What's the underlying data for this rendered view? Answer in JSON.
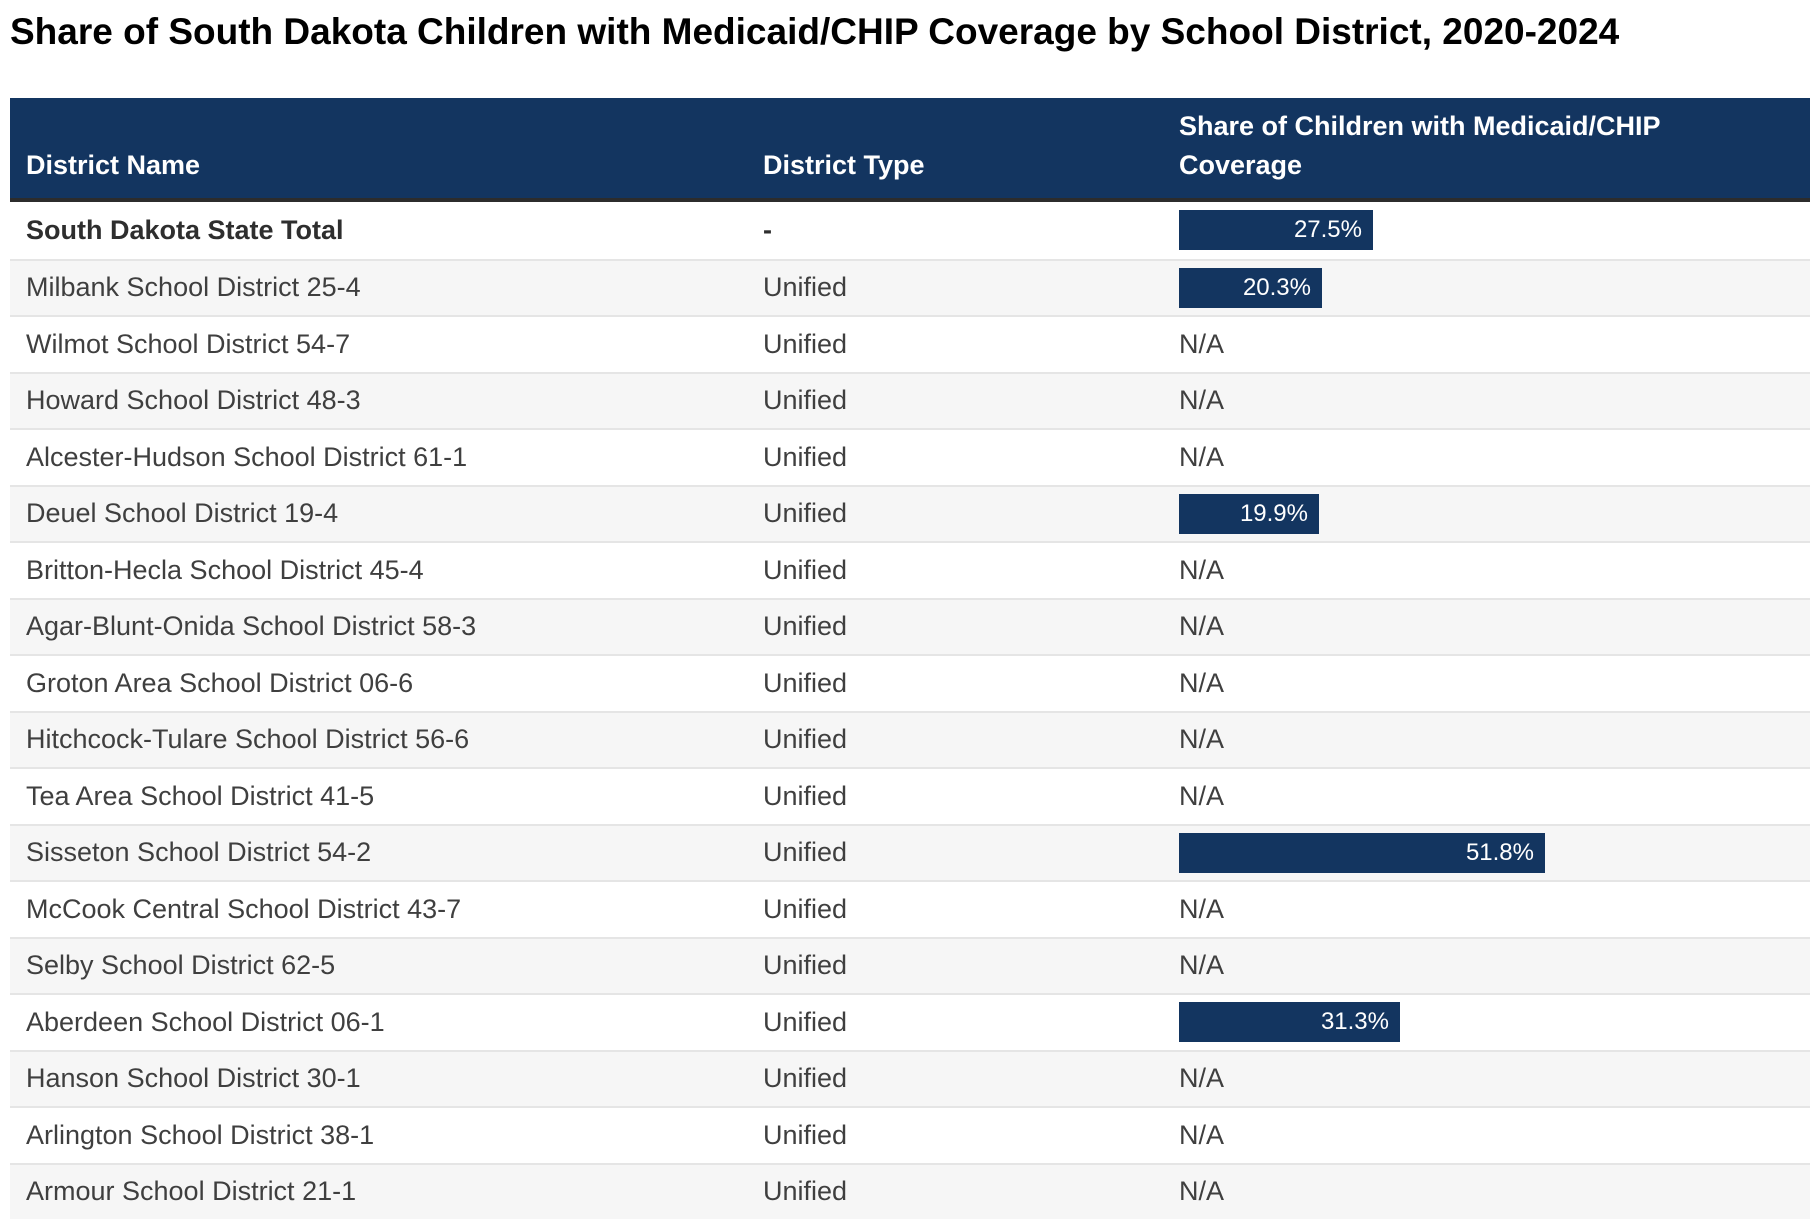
{
  "title": "Share of South Dakota Children with Medicaid/CHIP Coverage by School District, 2020-2024",
  "colors": {
    "header_bg": "#133560",
    "header_text": "#ffffff",
    "header_border": "#2c2c2c",
    "bar_fill": "#133560",
    "bar_label_text": "#ffffff",
    "row_alt_bg": "#f6f6f6",
    "row_text": "#3f3f3f",
    "separator": "#e5e5e5"
  },
  "table": {
    "columns": [
      {
        "label": "District Name"
      },
      {
        "label": "District Type"
      },
      {
        "label": "Share of Children with Medicaid/CHIP Coverage"
      }
    ],
    "na_label": "N/A",
    "rows": [
      {
        "name": "South Dakota State Total",
        "type": "-",
        "share_label": "27.5%",
        "share_value": 27.5,
        "emphasis": true
      },
      {
        "name": "Milbank School District 25-4",
        "type": "Unified",
        "share_label": "20.3%",
        "share_value": 20.3,
        "emphasis": false
      },
      {
        "name": "Wilmot School District 54-7",
        "type": "Unified",
        "share_label": "N/A",
        "share_value": null,
        "emphasis": false
      },
      {
        "name": "Howard School District 48-3",
        "type": "Unified",
        "share_label": "N/A",
        "share_value": null,
        "emphasis": false
      },
      {
        "name": "Alcester-Hudson School District 61-1",
        "type": "Unified",
        "share_label": "N/A",
        "share_value": null,
        "emphasis": false
      },
      {
        "name": "Deuel School District 19-4",
        "type": "Unified",
        "share_label": "19.9%",
        "share_value": 19.9,
        "emphasis": false
      },
      {
        "name": "Britton-Hecla School District 45-4",
        "type": "Unified",
        "share_label": "N/A",
        "share_value": null,
        "emphasis": false
      },
      {
        "name": "Agar-Blunt-Onida School District 58-3",
        "type": "Unified",
        "share_label": "N/A",
        "share_value": null,
        "emphasis": false
      },
      {
        "name": "Groton Area School District 06-6",
        "type": "Unified",
        "share_label": "N/A",
        "share_value": null,
        "emphasis": false
      },
      {
        "name": "Hitchcock-Tulare School District 56-6",
        "type": "Unified",
        "share_label": "N/A",
        "share_value": null,
        "emphasis": false
      },
      {
        "name": "Tea Area School District 41-5",
        "type": "Unified",
        "share_label": "N/A",
        "share_value": null,
        "emphasis": false
      },
      {
        "name": "Sisseton School District 54-2",
        "type": "Unified",
        "share_label": "51.8%",
        "share_value": 51.8,
        "emphasis": false
      },
      {
        "name": "McCook Central School District 43-7",
        "type": "Unified",
        "share_label": "N/A",
        "share_value": null,
        "emphasis": false
      },
      {
        "name": "Selby School District 62-5",
        "type": "Unified",
        "share_label": "N/A",
        "share_value": null,
        "emphasis": false
      },
      {
        "name": "Aberdeen School District 06-1",
        "type": "Unified",
        "share_label": "31.3%",
        "share_value": 31.3,
        "emphasis": false
      },
      {
        "name": "Hanson School District 30-1",
        "type": "Unified",
        "share_label": "N/A",
        "share_value": null,
        "emphasis": false
      },
      {
        "name": "Arlington School District 38-1",
        "type": "Unified",
        "share_label": "N/A",
        "share_value": null,
        "emphasis": false
      },
      {
        "name": "Armour School District 21-1",
        "type": "Unified",
        "share_label": "N/A",
        "share_value": null,
        "emphasis": false
      }
    ]
  },
  "chart_data": {
    "type": "table",
    "title": "Share of South Dakota Children with Medicaid/CHIP Coverage by School District, 2020-2024",
    "columns": [
      "District Name",
      "District Type",
      "Share of Children with Medicaid/CHIP Coverage"
    ],
    "value_unit": "percent",
    "na_label": "N/A",
    "rows": [
      [
        "South Dakota State Total",
        "-",
        27.5
      ],
      [
        "Milbank School District 25-4",
        "Unified",
        20.3
      ],
      [
        "Wilmot School District 54-7",
        "Unified",
        null
      ],
      [
        "Howard School District 48-3",
        "Unified",
        null
      ],
      [
        "Alcester-Hudson School District 61-1",
        "Unified",
        null
      ],
      [
        "Deuel School District 19-4",
        "Unified",
        19.9
      ],
      [
        "Britton-Hecla School District 45-4",
        "Unified",
        null
      ],
      [
        "Agar-Blunt-Onida School District 58-3",
        "Unified",
        null
      ],
      [
        "Groton Area School District 06-6",
        "Unified",
        null
      ],
      [
        "Hitchcock-Tulare School District 56-6",
        "Unified",
        null
      ],
      [
        "Tea Area School District 41-5",
        "Unified",
        null
      ],
      [
        "Sisseton School District 54-2",
        "Unified",
        51.8
      ],
      [
        "McCook Central School District 43-7",
        "Unified",
        null
      ],
      [
        "Selby School District 62-5",
        "Unified",
        null
      ],
      [
        "Aberdeen School District 06-1",
        "Unified",
        31.3
      ],
      [
        "Hanson School District 30-1",
        "Unified",
        null
      ],
      [
        "Arlington School District 38-1",
        "Unified",
        null
      ],
      [
        "Armour School District 21-1",
        "Unified",
        null
      ]
    ]
  }
}
